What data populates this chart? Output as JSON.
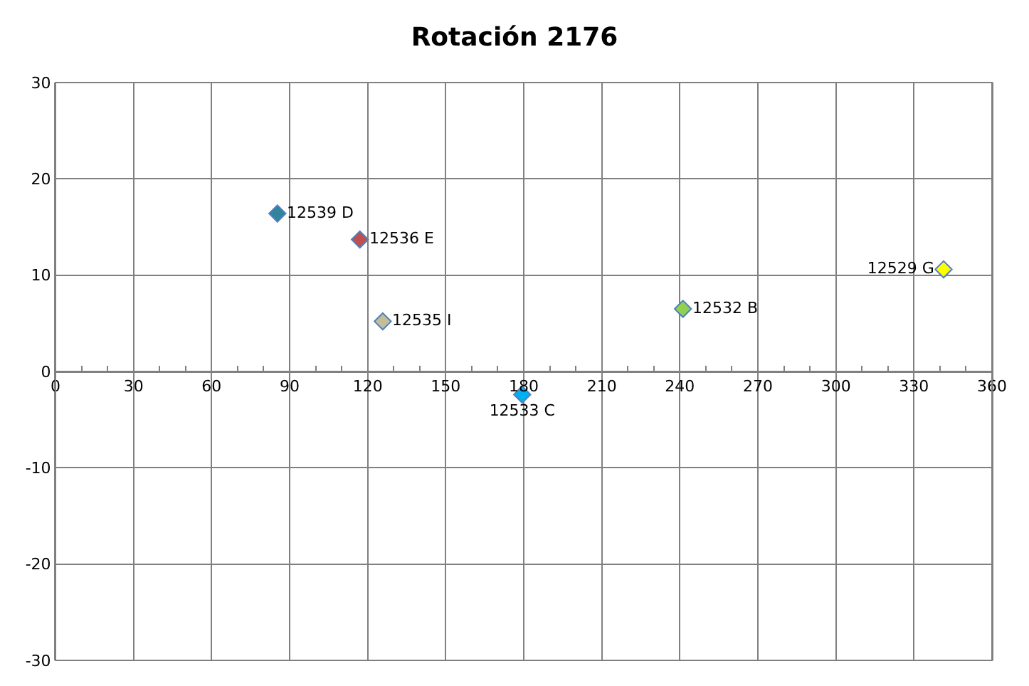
{
  "chart_data": {
    "type": "scatter",
    "title": "Rotación 2176",
    "xlim": [
      0,
      360
    ],
    "xticks": [
      0,
      30,
      60,
      90,
      120,
      150,
      180,
      210,
      240,
      270,
      300,
      330,
      360
    ],
    "ylim": [
      -30,
      30
    ],
    "yticks": [
      -30,
      -20,
      -10,
      0,
      10,
      20,
      30
    ],
    "grid": true,
    "marker": "diamond",
    "legend": false,
    "series": [
      {
        "name": "12539 D",
        "color": "#31849b",
        "x": [
          85.3
        ],
        "values": [
          16.4
        ]
      },
      {
        "name": "12536 E",
        "color": "#c0504d",
        "x": [
          117
        ],
        "values": [
          13.7
        ]
      },
      {
        "name": "12535 I",
        "color": "#c4bd97",
        "x": [
          125.8
        ],
        "values": [
          5.2
        ]
      },
      {
        "name": "12533 C",
        "color": "#00b0f0",
        "x": [
          179.4
        ],
        "values": [
          -2.4
        ]
      },
      {
        "name": "12532 B",
        "color": "#92d050",
        "x": [
          241.2
        ],
        "values": [
          6.5
        ]
      },
      {
        "name": "12529 G",
        "color": "#ffff00",
        "x": [
          341.4
        ],
        "values": [
          10.6
        ]
      }
    ]
  }
}
